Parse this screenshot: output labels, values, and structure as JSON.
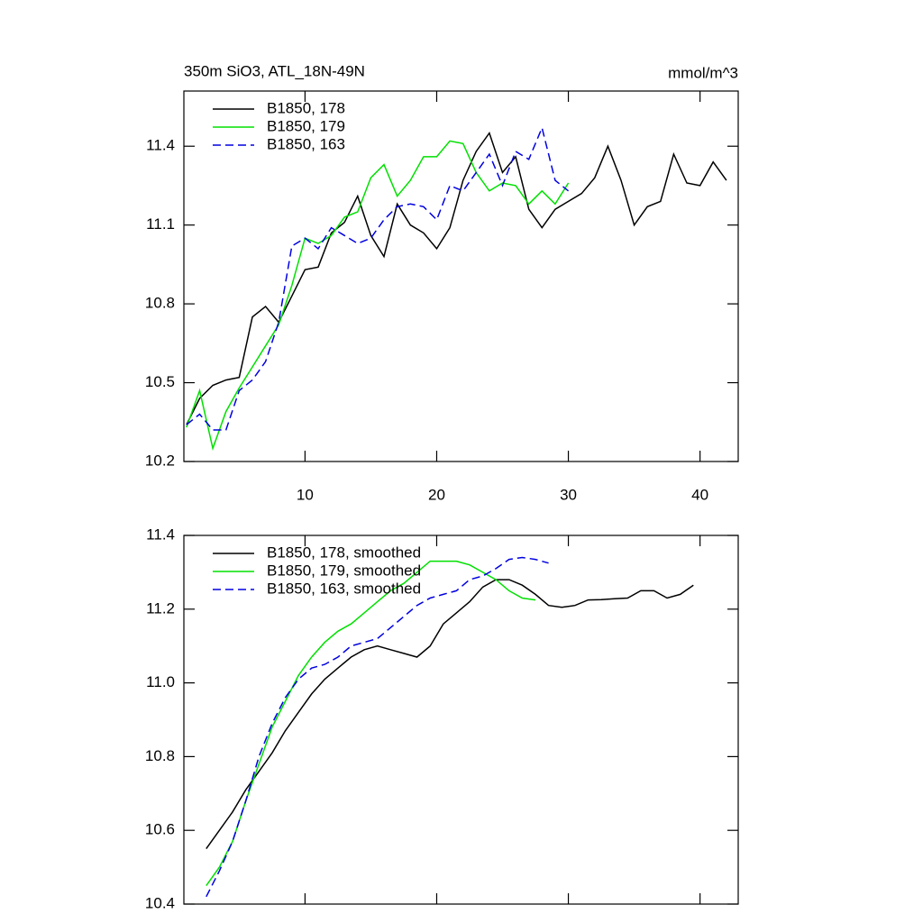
{
  "chart_data": [
    {
      "type": "line",
      "title": "350m SiO3, ATL_18N-49N",
      "units": "mmol/m^3",
      "x": [
        1,
        2,
        3,
        4,
        5,
        6,
        7,
        8,
        9,
        10,
        11,
        12,
        13,
        14,
        15,
        16,
        17,
        18,
        19,
        20,
        21,
        22,
        23,
        24,
        25,
        26,
        27,
        28,
        29,
        30,
        31,
        32,
        33,
        34,
        35,
        36,
        37,
        38,
        39,
        40,
        41,
        42
      ],
      "series": [
        {
          "name": "B1850, 178",
          "color": "#000000",
          "dash": false,
          "values": [
            10.34,
            10.44,
            10.49,
            10.51,
            10.52,
            10.75,
            10.79,
            10.73,
            10.83,
            10.93,
            10.94,
            11.07,
            11.11,
            11.21,
            11.06,
            10.98,
            11.18,
            11.1,
            11.07,
            11.01,
            11.09,
            11.27,
            11.38,
            11.45,
            11.3,
            11.36,
            11.16,
            11.09,
            11.16,
            11.19,
            11.22,
            11.28,
            11.4,
            11.27,
            11.1,
            11.17,
            11.19,
            11.37,
            11.26,
            11.25,
            11.34,
            11.27
          ]
        },
        {
          "name": "B1850, 179",
          "color": "#00e000",
          "dash": false,
          "values": [
            10.33,
            10.47,
            10.25,
            10.39,
            10.48,
            10.56,
            10.64,
            10.72,
            10.87,
            11.05,
            11.03,
            11.06,
            11.13,
            11.15,
            11.28,
            11.33,
            11.21,
            11.27,
            11.36,
            11.36,
            11.42,
            11.41,
            11.3,
            11.23,
            11.26,
            11.25,
            11.18,
            11.23,
            11.18,
            11.26,
            null,
            null,
            null,
            null,
            null,
            null,
            null,
            null,
            null,
            null,
            null,
            null
          ]
        },
        {
          "name": "B1850, 163",
          "color": "#0000e0",
          "dash": true,
          "values": [
            10.34,
            10.38,
            10.32,
            10.32,
            10.47,
            10.51,
            10.58,
            10.73,
            11.02,
            11.05,
            11.01,
            11.09,
            11.06,
            11.03,
            11.05,
            11.12,
            11.17,
            11.18,
            11.17,
            11.12,
            11.25,
            11.23,
            11.3,
            11.37,
            11.25,
            11.38,
            11.35,
            11.47,
            11.27,
            11.23,
            null,
            null,
            null,
            null,
            null,
            null,
            null,
            null,
            null,
            null,
            null,
            null
          ]
        }
      ],
      "xlim": [
        0.8,
        42.9
      ],
      "xticks": [
        10,
        20,
        30,
        40
      ],
      "show_xtick_labels": true,
      "ylim": [
        10.2,
        11.61
      ],
      "yticks": [
        10.2,
        10.5,
        10.8,
        11.1,
        11.4
      ]
    },
    {
      "type": "line",
      "x": [
        2.5,
        3.5,
        4.5,
        5.5,
        6.5,
        7.5,
        8.5,
        9.5,
        10.5,
        11.5,
        12.5,
        13.5,
        14.5,
        15.5,
        16.5,
        17.5,
        18.5,
        19.5,
        20.5,
        21.5,
        22.5,
        23.5,
        24.5,
        25.5,
        26.5,
        27.5,
        28.5,
        29.5,
        30.5,
        31.5,
        32.5,
        33.5,
        34.5,
        35.5,
        36.5,
        37.5,
        38.5,
        39.5
      ],
      "series": [
        {
          "name": "B1850, 178, smoothed",
          "color": "#000000",
          "dash": false,
          "values": [
            10.55,
            10.6,
            10.65,
            10.71,
            10.76,
            10.81,
            10.87,
            10.92,
            10.97,
            11.01,
            11.04,
            11.07,
            11.09,
            11.1,
            11.09,
            11.08,
            11.07,
            11.1,
            11.16,
            11.19,
            11.22,
            11.26,
            11.28,
            11.28,
            11.265,
            11.24,
            11.21,
            11.205,
            11.21,
            11.225,
            11.226,
            11.228,
            11.23,
            11.25,
            11.25,
            11.23,
            11.24,
            11.265
          ]
        },
        {
          "name": "B1850, 179, smoothed",
          "color": "#00e000",
          "dash": false,
          "values": [
            10.45,
            10.5,
            10.57,
            10.68,
            10.78,
            10.88,
            10.95,
            11.02,
            11.07,
            11.11,
            11.14,
            11.16,
            11.19,
            11.22,
            11.25,
            11.27,
            11.3,
            11.33,
            11.33,
            11.33,
            11.32,
            11.3,
            11.28,
            11.25,
            11.23,
            11.225,
            null,
            null,
            null,
            null,
            null,
            null,
            null,
            null,
            null,
            null,
            null,
            null
          ]
        },
        {
          "name": "B1850, 163, smoothed",
          "color": "#0000e0",
          "dash": true,
          "values": [
            10.42,
            10.49,
            10.57,
            10.68,
            10.8,
            10.89,
            10.96,
            11.01,
            11.04,
            11.05,
            11.07,
            11.1,
            11.11,
            11.12,
            11.15,
            11.18,
            11.21,
            11.23,
            11.24,
            11.25,
            11.28,
            11.29,
            11.31,
            11.335,
            11.34,
            11.335,
            11.325,
            null,
            null,
            null,
            null,
            null,
            null,
            null,
            null,
            null,
            null,
            null
          ]
        }
      ],
      "xlim": [
        0.8,
        42.9
      ],
      "xticks": [
        10,
        20,
        30,
        40
      ],
      "show_xtick_labels": false,
      "ylim": [
        10.4,
        11.4
      ],
      "yticks": [
        10.4,
        10.6,
        10.8,
        {
          "value": 11,
          "label": "11.0"
        },
        11.2,
        11.4
      ]
    }
  ]
}
